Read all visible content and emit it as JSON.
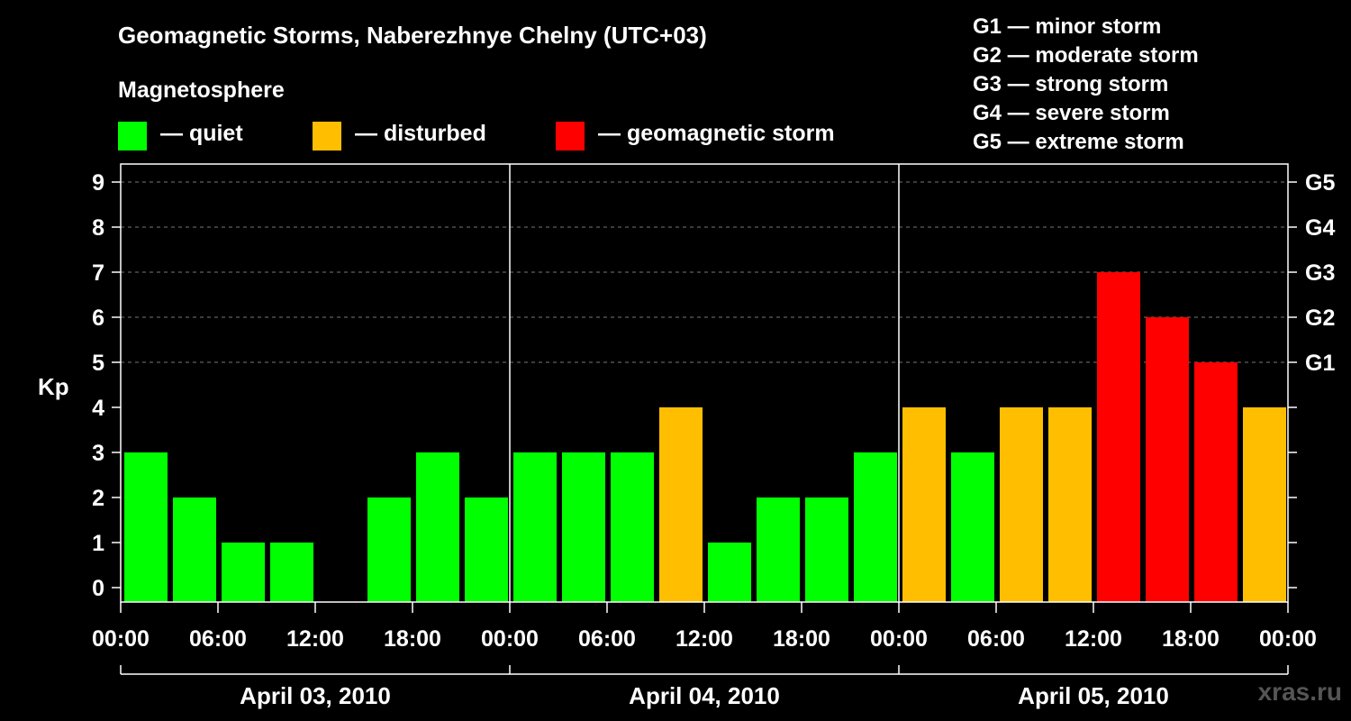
{
  "title": "Geomagnetic Storms, Naberezhnye Chelny (UTC+03)",
  "magnetosphere": {
    "title": "Magnetosphere",
    "items": [
      {
        "label": "— quiet",
        "color": "#00ff00"
      },
      {
        "label": "— disturbed",
        "color": "#ffbf00"
      },
      {
        "label": "— geomagnetic storm",
        "color": "#ff0000"
      }
    ]
  },
  "g_legend": [
    "G1 — minor storm",
    "G2 — moderate storm",
    "G3 — strong storm",
    "G4 — severe storm",
    "G5 — extreme storm"
  ],
  "watermark": "xras.ru",
  "chart_data": {
    "type": "bar",
    "ylabel": "Kp",
    "ylim": [
      0,
      9
    ],
    "y_ticks": [
      "0",
      "1",
      "2",
      "3",
      "4",
      "5",
      "6",
      "7",
      "8",
      "9"
    ],
    "right_ticks": [
      {
        "kp": 5,
        "label": "G1"
      },
      {
        "kp": 6,
        "label": "G2"
      },
      {
        "kp": 7,
        "label": "G3"
      },
      {
        "kp": 8,
        "label": "G4"
      },
      {
        "kp": 9,
        "label": "G5"
      }
    ],
    "x_tick_labels": [
      "00:00",
      "06:00",
      "12:00",
      "18:00",
      "00:00",
      "06:00",
      "12:00",
      "18:00",
      "00:00",
      "06:00",
      "12:00",
      "18:00",
      "00:00"
    ],
    "days": [
      "April 03, 2010",
      "April 04, 2010",
      "April 05, 2010"
    ],
    "grid": "dashed horizontal lines at Kp 5–9",
    "colors": {
      "quiet": "#00ff00",
      "disturbed": "#ffbf00",
      "storm": "#ff0000"
    },
    "values": [
      3,
      2,
      1,
      1,
      0,
      2,
      3,
      2,
      3,
      3,
      3,
      4,
      1,
      2,
      2,
      3,
      4,
      3,
      4,
      4,
      7,
      6,
      5,
      4
    ]
  }
}
